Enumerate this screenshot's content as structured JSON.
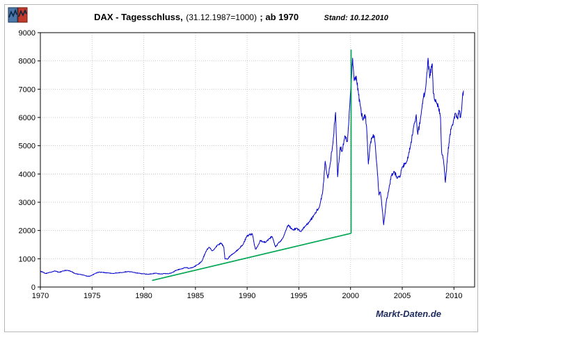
{
  "header": {
    "title_main": "DAX - Tagesschluss,",
    "title_paren": "(31.12.1987=1000)",
    "title_suffix": "; ab 1970",
    "stand": "Stand: 10.12.2010"
  },
  "watermark": "Markt-Daten.de",
  "logo": {
    "name": "markt-daten-logo"
  },
  "chart_data": {
    "type": "line",
    "title": "DAX - Tagesschluss, (31.12.1987=1000) ; ab 1970",
    "subtitle": "Stand: 10.12.2010",
    "x_range": [
      1970,
      2012
    ],
    "y_range": [
      0,
      9000
    ],
    "x_ticks": [
      1970,
      1975,
      1980,
      1985,
      1990,
      1995,
      2000,
      2005,
      2010
    ],
    "y_ticks": [
      0,
      1000,
      2000,
      3000,
      4000,
      5000,
      6000,
      7000,
      8000,
      9000
    ],
    "grid": true,
    "legend": "none",
    "series": [
      {
        "name": "DAX Tagesschluss",
        "color": "#0000cc",
        "points": [
          [
            1970.0,
            560
          ],
          [
            1970.25,
            530
          ],
          [
            1970.5,
            480
          ],
          [
            1970.75,
            500
          ],
          [
            1971.0,
            520
          ],
          [
            1971.4,
            570
          ],
          [
            1971.8,
            520
          ],
          [
            1972.2,
            570
          ],
          [
            1972.6,
            590
          ],
          [
            1973.0,
            550
          ],
          [
            1973.4,
            470
          ],
          [
            1973.8,
            450
          ],
          [
            1974.2,
            420
          ],
          [
            1974.6,
            380
          ],
          [
            1974.9,
            400
          ],
          [
            1975.3,
            480
          ],
          [
            1975.7,
            530
          ],
          [
            1976.0,
            520
          ],
          [
            1976.5,
            500
          ],
          [
            1977.0,
            480
          ],
          [
            1977.5,
            500
          ],
          [
            1978.0,
            520
          ],
          [
            1978.5,
            550
          ],
          [
            1979.0,
            520
          ],
          [
            1979.5,
            490
          ],
          [
            1980.0,
            470
          ],
          [
            1980.4,
            450
          ],
          [
            1980.8,
            470
          ],
          [
            1981.2,
            490
          ],
          [
            1981.6,
            460
          ],
          [
            1982.0,
            480
          ],
          [
            1982.4,
            470
          ],
          [
            1982.8,
            520
          ],
          [
            1983.2,
            600
          ],
          [
            1983.6,
            640
          ],
          [
            1984.0,
            690
          ],
          [
            1984.4,
            660
          ],
          [
            1984.8,
            700
          ],
          [
            1985.2,
            790
          ],
          [
            1985.6,
            900
          ],
          [
            1986.0,
            1250
          ],
          [
            1986.3,
            1410
          ],
          [
            1986.6,
            1280
          ],
          [
            1986.9,
            1380
          ],
          [
            1987.2,
            1500
          ],
          [
            1987.5,
            1550
          ],
          [
            1987.75,
            1400
          ],
          [
            1987.85,
            1000
          ],
          [
            1988.1,
            980
          ],
          [
            1988.4,
            1120
          ],
          [
            1988.8,
            1220
          ],
          [
            1989.2,
            1350
          ],
          [
            1989.6,
            1500
          ],
          [
            1989.95,
            1790
          ],
          [
            1990.2,
            1850
          ],
          [
            1990.5,
            1880
          ],
          [
            1990.65,
            1600
          ],
          [
            1990.8,
            1340
          ],
          [
            1991.0,
            1420
          ],
          [
            1991.25,
            1650
          ],
          [
            1991.5,
            1600
          ],
          [
            1991.8,
            1580
          ],
          [
            1992.1,
            1700
          ],
          [
            1992.4,
            1790
          ],
          [
            1992.75,
            1420
          ],
          [
            1993.0,
            1550
          ],
          [
            1993.4,
            1700
          ],
          [
            1993.8,
            2050
          ],
          [
            1994.0,
            2200
          ],
          [
            1994.4,
            2020
          ],
          [
            1994.8,
            2080
          ],
          [
            1995.2,
            1960
          ],
          [
            1995.6,
            2150
          ],
          [
            1996.0,
            2300
          ],
          [
            1996.5,
            2560
          ],
          [
            1997.0,
            2850
          ],
          [
            1997.3,
            3350
          ],
          [
            1997.55,
            4450
          ],
          [
            1997.8,
            3850
          ],
          [
            1998.0,
            4280
          ],
          [
            1998.3,
            5100
          ],
          [
            1998.55,
            6180
          ],
          [
            1998.75,
            3900
          ],
          [
            1999.0,
            4950
          ],
          [
            1999.2,
            4800
          ],
          [
            1999.45,
            5350
          ],
          [
            1999.7,
            5150
          ],
          [
            1999.9,
            6300
          ],
          [
            2000.2,
            8100
          ],
          [
            2000.35,
            7300
          ],
          [
            2000.55,
            7450
          ],
          [
            2000.75,
            6900
          ],
          [
            2000.95,
            6400
          ],
          [
            2001.2,
            5900
          ],
          [
            2001.4,
            6100
          ],
          [
            2001.55,
            5700
          ],
          [
            2001.72,
            4350
          ],
          [
            2001.9,
            5050
          ],
          [
            2002.1,
            5300
          ],
          [
            2002.3,
            5350
          ],
          [
            2002.55,
            4300
          ],
          [
            2002.75,
            3250
          ],
          [
            2002.9,
            3350
          ],
          [
            2003.1,
            2650
          ],
          [
            2003.2,
            2200
          ],
          [
            2003.45,
            3000
          ],
          [
            2003.7,
            3450
          ],
          [
            2003.95,
            3950
          ],
          [
            2004.2,
            4100
          ],
          [
            2004.5,
            3850
          ],
          [
            2004.8,
            3900
          ],
          [
            2005.0,
            4250
          ],
          [
            2005.4,
            4400
          ],
          [
            2005.8,
            5000
          ],
          [
            2006.1,
            5650
          ],
          [
            2006.35,
            6100
          ],
          [
            2006.5,
            5400
          ],
          [
            2006.8,
            6050
          ],
          [
            2007.0,
            6600
          ],
          [
            2007.25,
            7000
          ],
          [
            2007.5,
            8100
          ],
          [
            2007.65,
            7400
          ],
          [
            2007.9,
            7900
          ],
          [
            2008.0,
            6850
          ],
          [
            2008.3,
            6550
          ],
          [
            2008.5,
            6400
          ],
          [
            2008.7,
            6000
          ],
          [
            2008.8,
            4800
          ],
          [
            2009.0,
            4450
          ],
          [
            2009.17,
            3700
          ],
          [
            2009.4,
            4700
          ],
          [
            2009.6,
            5350
          ],
          [
            2009.8,
            5700
          ],
          [
            2010.0,
            5950
          ],
          [
            2010.15,
            6150
          ],
          [
            2010.35,
            5950
          ],
          [
            2010.5,
            6250
          ],
          [
            2010.65,
            6000
          ],
          [
            2010.8,
            6600
          ],
          [
            2010.92,
            6950
          ]
        ]
      }
    ],
    "trend_lines": [
      {
        "name": "support-trend-line",
        "color": "#00a651",
        "points": [
          [
            1980.8,
            230
          ],
          [
            2000.05,
            1900
          ]
        ]
      },
      {
        "name": "vertical-marker-line",
        "color": "#00a651",
        "points": [
          [
            2000.05,
            1900
          ],
          [
            2000.05,
            8400
          ]
        ]
      }
    ]
  }
}
